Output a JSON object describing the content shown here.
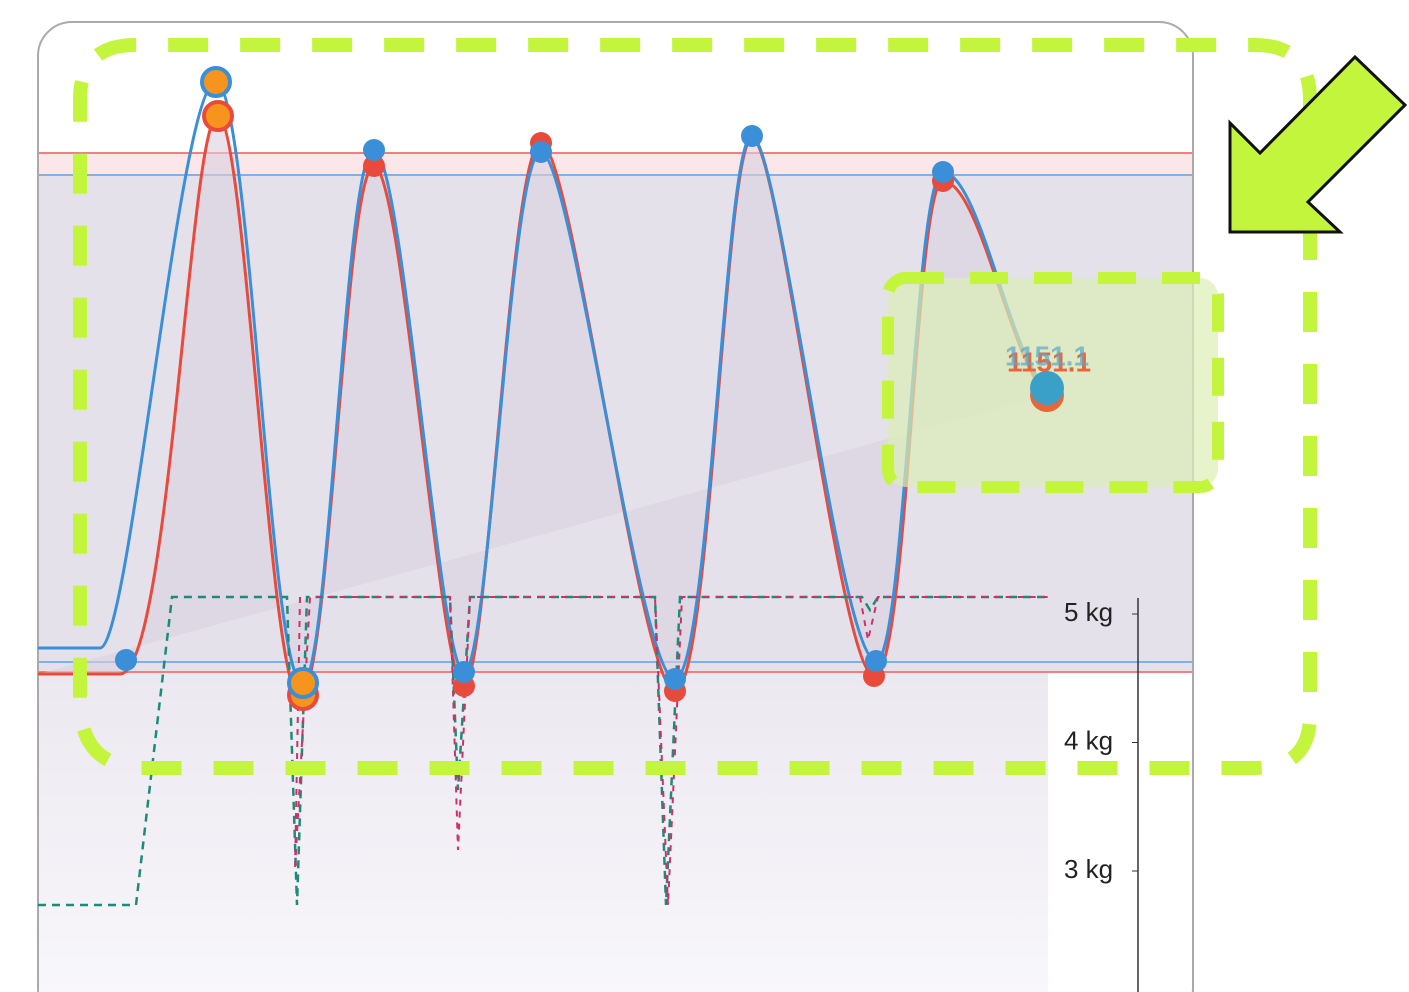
{
  "axis": {
    "ticks": [
      {
        "value": 5,
        "label": "5 kg"
      },
      {
        "value": 4,
        "label": "4 kg"
      },
      {
        "value": 3,
        "label": "3 kg"
      }
    ]
  },
  "tooltip": {
    "label": "1151.1"
  }
}
